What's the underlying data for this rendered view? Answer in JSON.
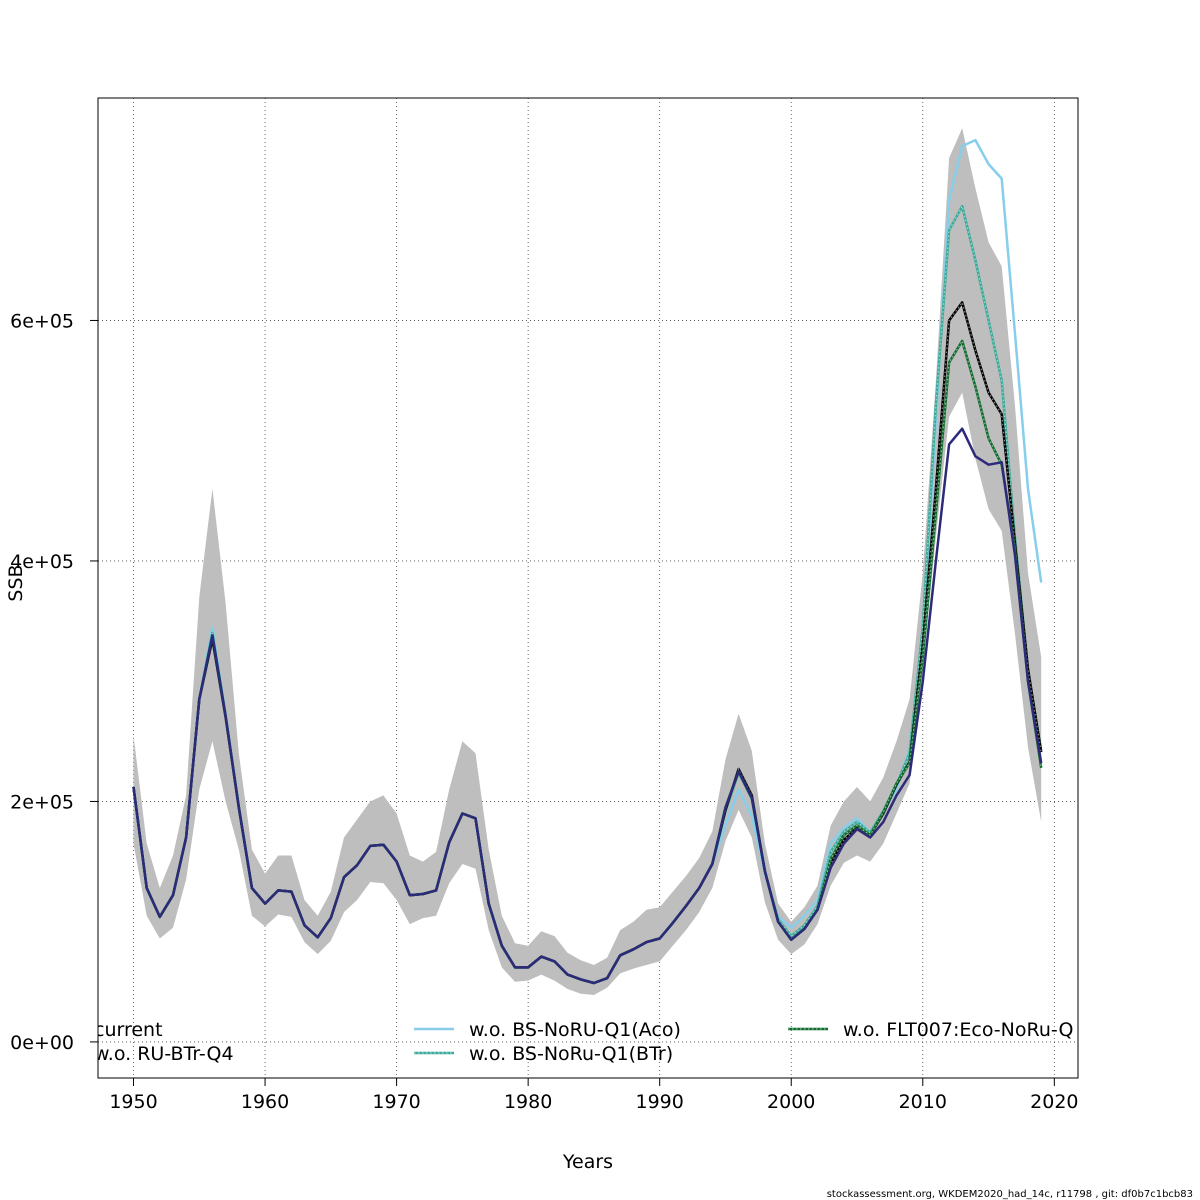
{
  "chart_data": {
    "type": "line",
    "xlabel": "Years",
    "ylabel": "SSB",
    "xlim": [
      1947.3,
      2021.8
    ],
    "ylim": [
      -30000,
      785000
    ],
    "x_ticks": [
      1950,
      1960,
      1970,
      1980,
      1990,
      2000,
      2010,
      2020
    ],
    "x_tick_labels": [
      "1950",
      "1960",
      "1970",
      "1980",
      "1990",
      "2000",
      "2010",
      "2020"
    ],
    "y_ticks": [
      0,
      200000,
      400000,
      600000
    ],
    "y_tick_labels": [
      "0e+00",
      "2e+05",
      "4e+05",
      "6e+05"
    ],
    "grid": true,
    "legend_position": "bottom",
    "footer": "stockassessment.org, WKDEM2020_had_14c, r11798 , git: df0b7c1bcb83",
    "x": [
      1950,
      1951,
      1952,
      1953,
      1954,
      1955,
      1956,
      1957,
      1958,
      1959,
      1960,
      1961,
      1962,
      1963,
      1964,
      1965,
      1966,
      1967,
      1968,
      1969,
      1970,
      1971,
      1972,
      1973,
      1974,
      1975,
      1976,
      1977,
      1978,
      1979,
      1980,
      1981,
      1982,
      1983,
      1984,
      1985,
      1986,
      1987,
      1988,
      1989,
      1990,
      1991,
      1992,
      1993,
      1994,
      1995,
      1996,
      1997,
      1998,
      1999,
      2000,
      2001,
      2002,
      2003,
      2004,
      2005,
      2006,
      2007,
      2008,
      2009,
      2010,
      2011,
      2012,
      2013,
      2014,
      2015,
      2016,
      2017,
      2018,
      2019
    ],
    "ci_upper": [
      255000,
      165000,
      128000,
      155000,
      205000,
      370000,
      460000,
      365000,
      240000,
      160000,
      140000,
      155000,
      155000,
      118000,
      105000,
      125000,
      170000,
      185000,
      200000,
      205000,
      190000,
      155000,
      150000,
      158000,
      210000,
      250000,
      240000,
      160000,
      105000,
      82000,
      80000,
      92000,
      88000,
      74000,
      68000,
      64000,
      70000,
      93000,
      100000,
      110000,
      112000,
      125000,
      138000,
      153000,
      175000,
      235000,
      273000,
      242000,
      165000,
      115000,
      100000,
      112000,
      130000,
      180000,
      200000,
      212000,
      200000,
      220000,
      250000,
      285000,
      390000,
      550000,
      735000,
      760000,
      710000,
      665000,
      645000,
      530000,
      390000,
      320000
    ],
    "ci_lower": [
      165000,
      105000,
      86000,
      95000,
      135000,
      210000,
      250000,
      200000,
      160000,
      105000,
      96000,
      106000,
      104000,
      83000,
      73000,
      84000,
      108000,
      118000,
      133000,
      132000,
      118000,
      98000,
      103000,
      105000,
      132000,
      148000,
      144000,
      93000,
      62000,
      50000,
      51000,
      56000,
      51000,
      44000,
      40000,
      39000,
      45000,
      57000,
      61000,
      64000,
      67000,
      80000,
      93000,
      108000,
      128000,
      167000,
      193000,
      170000,
      116000,
      85000,
      73000,
      81000,
      98000,
      130000,
      149000,
      155000,
      150000,
      165000,
      190000,
      215000,
      310000,
      420000,
      520000,
      540000,
      485000,
      443000,
      425000,
      340000,
      245000,
      183000
    ],
    "series": [
      {
        "name": "current",
        "color": "#000000",
        "dashed": true,
        "values": [
          212000,
          128000,
          104000,
          122000,
          170000,
          285000,
          335000,
          270000,
          195000,
          128000,
          115000,
          126000,
          125000,
          97000,
          87000,
          103000,
          137000,
          147000,
          163000,
          164000,
          150000,
          122000,
          123000,
          126000,
          166000,
          190000,
          186000,
          115000,
          80000,
          62000,
          62000,
          71000,
          67000,
          56000,
          52000,
          49000,
          53000,
          72000,
          77000,
          83000,
          86000,
          99000,
          113000,
          128000,
          148000,
          193000,
          227000,
          205000,
          142000,
          100000,
          85000,
          94000,
          110000,
          148000,
          168000,
          178000,
          172000,
          190000,
          214000,
          233000,
          330000,
          460000,
          600000,
          615000,
          575000,
          540000,
          522000,
          415000,
          310000,
          241000
        ]
      },
      {
        "name": "w.o. BS-NoRU-Q1(Aco)",
        "color": "#87ceeb",
        "dashed": false,
        "values": [
          212000,
          128000,
          104000,
          122000,
          170000,
          285000,
          345000,
          272000,
          196000,
          128000,
          115000,
          126000,
          125000,
          97000,
          87000,
          103000,
          137000,
          147000,
          163000,
          164000,
          150000,
          122000,
          123000,
          126000,
          166000,
          190000,
          186000,
          115000,
          80000,
          62000,
          62000,
          71000,
          67000,
          56000,
          52000,
          49000,
          53000,
          72000,
          77000,
          83000,
          86000,
          99000,
          113000,
          128000,
          148000,
          180000,
          210000,
          188000,
          140000,
          104000,
          95000,
          105000,
          118000,
          165000,
          178000,
          186000,
          174000,
          192000,
          210000,
          243000,
          335000,
          515000,
          700000,
          745000,
          750000,
          730000,
          718000,
          590000,
          460000,
          382000
        ]
      },
      {
        "name": "w.o. FLT007:Eco-NoRu-Q",
        "color": "#0f6b2c",
        "dashed": true,
        "values": [
          212000,
          128000,
          104000,
          122000,
          170000,
          285000,
          338000,
          271000,
          195000,
          128000,
          115000,
          126000,
          125000,
          97000,
          87000,
          103000,
          137000,
          147000,
          163000,
          164000,
          150000,
          122000,
          123000,
          126000,
          166000,
          190000,
          186000,
          115000,
          80000,
          62000,
          62000,
          71000,
          67000,
          56000,
          52000,
          49000,
          53000,
          72000,
          77000,
          83000,
          86000,
          99000,
          113000,
          128000,
          148000,
          195000,
          225000,
          203000,
          142000,
          100000,
          85000,
          94000,
          110000,
          152000,
          172000,
          180000,
          172000,
          191000,
          215000,
          232000,
          320000,
          440000,
          565000,
          583000,
          545000,
          502000,
          480000,
          410000,
          300000,
          228000
        ]
      },
      {
        "name": "w.o. RU-BTr-Q4",
        "color": "#2e2a7a",
        "dashed": false,
        "values": [
          212000,
          128000,
          104000,
          122000,
          170000,
          285000,
          338000,
          271000,
          195000,
          128000,
          115000,
          126000,
          125000,
          97000,
          87000,
          103000,
          137000,
          147000,
          163000,
          164000,
          150000,
          122000,
          123000,
          126000,
          166000,
          190000,
          186000,
          115000,
          80000,
          62000,
          62000,
          71000,
          67000,
          56000,
          52000,
          49000,
          53000,
          72000,
          77000,
          83000,
          86000,
          99000,
          113000,
          128000,
          148000,
          195000,
          225000,
          203000,
          142000,
          100000,
          85000,
          94000,
          110000,
          145000,
          165000,
          177000,
          170000,
          183000,
          205000,
          222000,
          300000,
          400000,
          497000,
          510000,
          487000,
          480000,
          482000,
          405000,
          300000,
          232000
        ]
      },
      {
        "name": "w.o. BS-NoRu-Q1(BTr)",
        "color": "#3aaa99",
        "dashed": true,
        "values": [
          212000,
          128000,
          104000,
          122000,
          170000,
          285000,
          340000,
          272000,
          196000,
          128000,
          115000,
          126000,
          125000,
          97000,
          87000,
          103000,
          137000,
          147000,
          163000,
          164000,
          150000,
          122000,
          123000,
          126000,
          166000,
          190000,
          186000,
          115000,
          80000,
          62000,
          62000,
          71000,
          67000,
          56000,
          52000,
          49000,
          53000,
          72000,
          77000,
          83000,
          86000,
          99000,
          113000,
          128000,
          148000,
          192000,
          224000,
          202000,
          142000,
          102000,
          88000,
          97000,
          113000,
          158000,
          175000,
          183000,
          174000,
          192000,
          214000,
          240000,
          345000,
          530000,
          675000,
          695000,
          650000,
          600000,
          550000,
          420000,
          310000,
          242000
        ]
      }
    ],
    "series_draw_order": [
      1,
      4,
      0,
      2,
      3
    ]
  }
}
